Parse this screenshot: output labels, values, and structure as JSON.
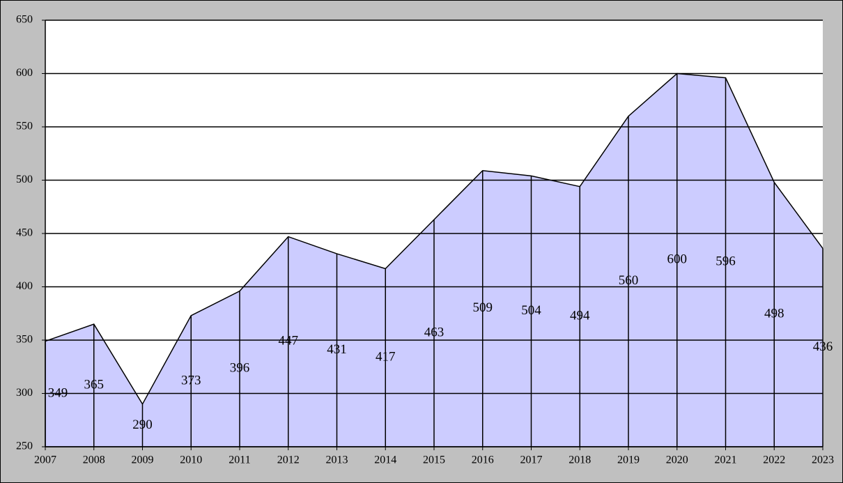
{
  "chart_data": {
    "type": "area",
    "categories": [
      "2007",
      "2008",
      "2009",
      "2010",
      "2011",
      "2012",
      "2013",
      "2014",
      "2015",
      "2016",
      "2017",
      "2018",
      "2019",
      "2020",
      "2021",
      "2022",
      "2023"
    ],
    "values": [
      349,
      365,
      290,
      373,
      396,
      447,
      431,
      417,
      463,
      509,
      504,
      494,
      560,
      600,
      596,
      498,
      436
    ],
    "color": "#ccccff",
    "ylim": [
      250,
      650
    ],
    "yticks": [
      250,
      300,
      350,
      400,
      450,
      500,
      550,
      600,
      650
    ],
    "grid": true
  }
}
